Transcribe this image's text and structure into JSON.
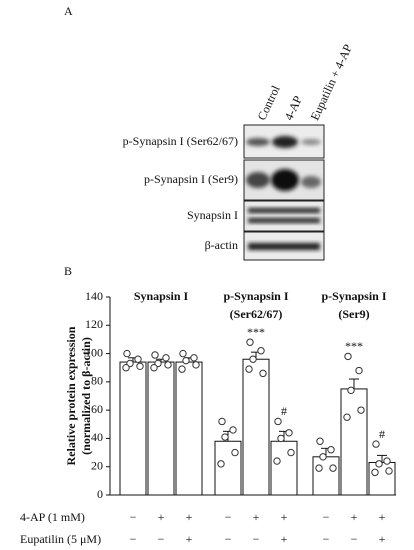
{
  "blot": {
    "panel": "A",
    "lanes": [
      "Control",
      "4-AP",
      "Eupatilin + 4-AP"
    ],
    "rows": [
      "p-Synapsin I (Ser62/67)",
      "p-Synapsin I (Ser9)",
      "Synapsin I",
      "β-actin"
    ]
  },
  "chart_data": {
    "type": "bar",
    "panel": "B",
    "ylabel": [
      "Relative protein expression",
      "(normalized to β-actin)"
    ],
    "ylim": [
      0,
      140
    ],
    "yticks": [
      0,
      20,
      40,
      60,
      80,
      100,
      120,
      140
    ],
    "color": "#ffffff",
    "groups": [
      {
        "title": [
          "Synapsin I"
        ],
        "values": [
          94,
          94,
          94
        ],
        "errors": [
          3,
          2,
          3
        ],
        "points": [
          [
            100,
            96,
            93,
            91,
            90
          ],
          [
            99,
            97,
            93,
            92,
            90
          ],
          [
            100,
            97,
            95,
            92,
            89
          ]
        ],
        "markers": [
          null,
          null,
          null
        ]
      },
      {
        "title": [
          "p-Synapsin I",
          "(Ser62/67)"
        ],
        "values": [
          38,
          96,
          38
        ],
        "errors": [
          7,
          5,
          7
        ],
        "points": [
          [
            52,
            46,
            41,
            30,
            22
          ],
          [
            108,
            102,
            96,
            86,
            89
          ],
          [
            52,
            44,
            40,
            30,
            24
          ]
        ],
        "markers": [
          null,
          "***",
          "#"
        ]
      },
      {
        "title": [
          "p-Synapsin I",
          "(Ser9)"
        ],
        "values": [
          27,
          75,
          23
        ],
        "errors": [
          6,
          7,
          5
        ],
        "points": [
          [
            38,
            32,
            27,
            19,
            19
          ],
          [
            98,
            88,
            74,
            60,
            55
          ],
          [
            36,
            24,
            22,
            17,
            16
          ]
        ],
        "markers": [
          null,
          "***",
          "#"
        ]
      }
    ],
    "treatments": [
      {
        "label": "4-AP (1 mM)",
        "signs": [
          "−",
          "+",
          "+",
          "−",
          "+",
          "+",
          "−",
          "+",
          "+"
        ]
      },
      {
        "label": "Eupatilin (5 μM)",
        "signs": [
          "−",
          "−",
          "+",
          "−",
          "−",
          "+",
          "−",
          "−",
          "+"
        ]
      }
    ]
  }
}
